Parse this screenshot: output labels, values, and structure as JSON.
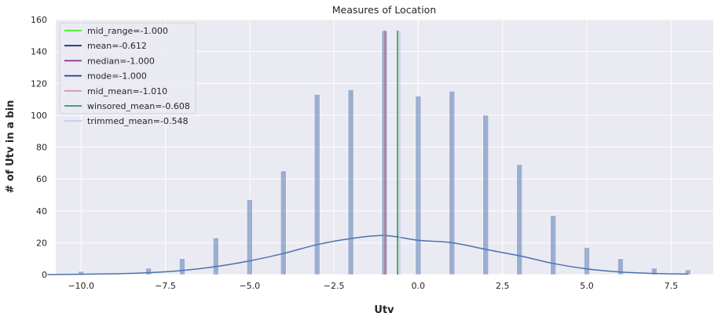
{
  "chart_data": {
    "type": "bar",
    "title": "Measures of Location",
    "xlabel": "Utv",
    "ylabel": "# of Utv in a bin",
    "xlim": [
      -10.75,
      8.75
    ],
    "ylim": [
      0,
      160
    ],
    "xticks": [
      -10.0,
      -7.5,
      -5.0,
      -2.5,
      0.0,
      2.5,
      5.0,
      7.5
    ],
    "xtick_labels": [
      "−10.0",
      "−7.5",
      "−5.0",
      "−2.5",
      "0.0",
      "2.5",
      "5.0",
      "7.5"
    ],
    "yticks": [
      0,
      20,
      40,
      60,
      80,
      100,
      120,
      140,
      160
    ],
    "grid": true,
    "legend_position": "top-left",
    "bar_color": "#4c72b0",
    "histogram": {
      "x": [
        -10,
        -8,
        -7,
        -6,
        -5,
        -4,
        -3,
        -2,
        -1,
        0,
        1,
        2,
        3,
        4,
        5,
        6,
        7,
        8
      ],
      "counts": [
        2,
        4,
        10,
        23,
        47,
        65,
        113,
        116,
        153,
        112,
        115,
        100,
        69,
        37,
        17,
        10,
        4,
        3
      ]
    },
    "kde": {
      "x": [
        -11.0,
        -10.0,
        -9.0,
        -8.0,
        -7.0,
        -6.0,
        -5.0,
        -4.0,
        -3.0,
        -2.0,
        -1.0,
        0.0,
        1.0,
        2.0,
        3.0,
        4.0,
        5.0,
        6.0,
        7.0,
        8.0
      ],
      "y": [
        0.0,
        0.2,
        0.5,
        1.2,
        2.6,
        5.0,
        8.6,
        13.2,
        18.8,
        22.6,
        24.5,
        21.5,
        20.0,
        15.8,
        11.8,
        7.0,
        3.6,
        1.6,
        0.7,
        0.3
      ]
    },
    "vlines": [
      {
        "name": "mid_range=-1.000",
        "x": -1.0,
        "color": "#44ee22"
      },
      {
        "name": "mean=-0.612",
        "x": -0.612,
        "color": "#1f2f80"
      },
      {
        "name": "median=-1.000",
        "x": -1.0,
        "color": "#8e2c8e"
      },
      {
        "name": "mode=-1.000",
        "x": -1.0,
        "color": "#2b3a8a"
      },
      {
        "name": "mid_mean=-1.010",
        "x": -1.01,
        "color": "#d59aa8"
      },
      {
        "name": "winsored_mean=-0.608",
        "x": -0.608,
        "color": "#2a9d5c"
      },
      {
        "name": "trimmed_mean=-0.548",
        "x": -0.548,
        "color": "#c9c8f0"
      }
    ]
  }
}
